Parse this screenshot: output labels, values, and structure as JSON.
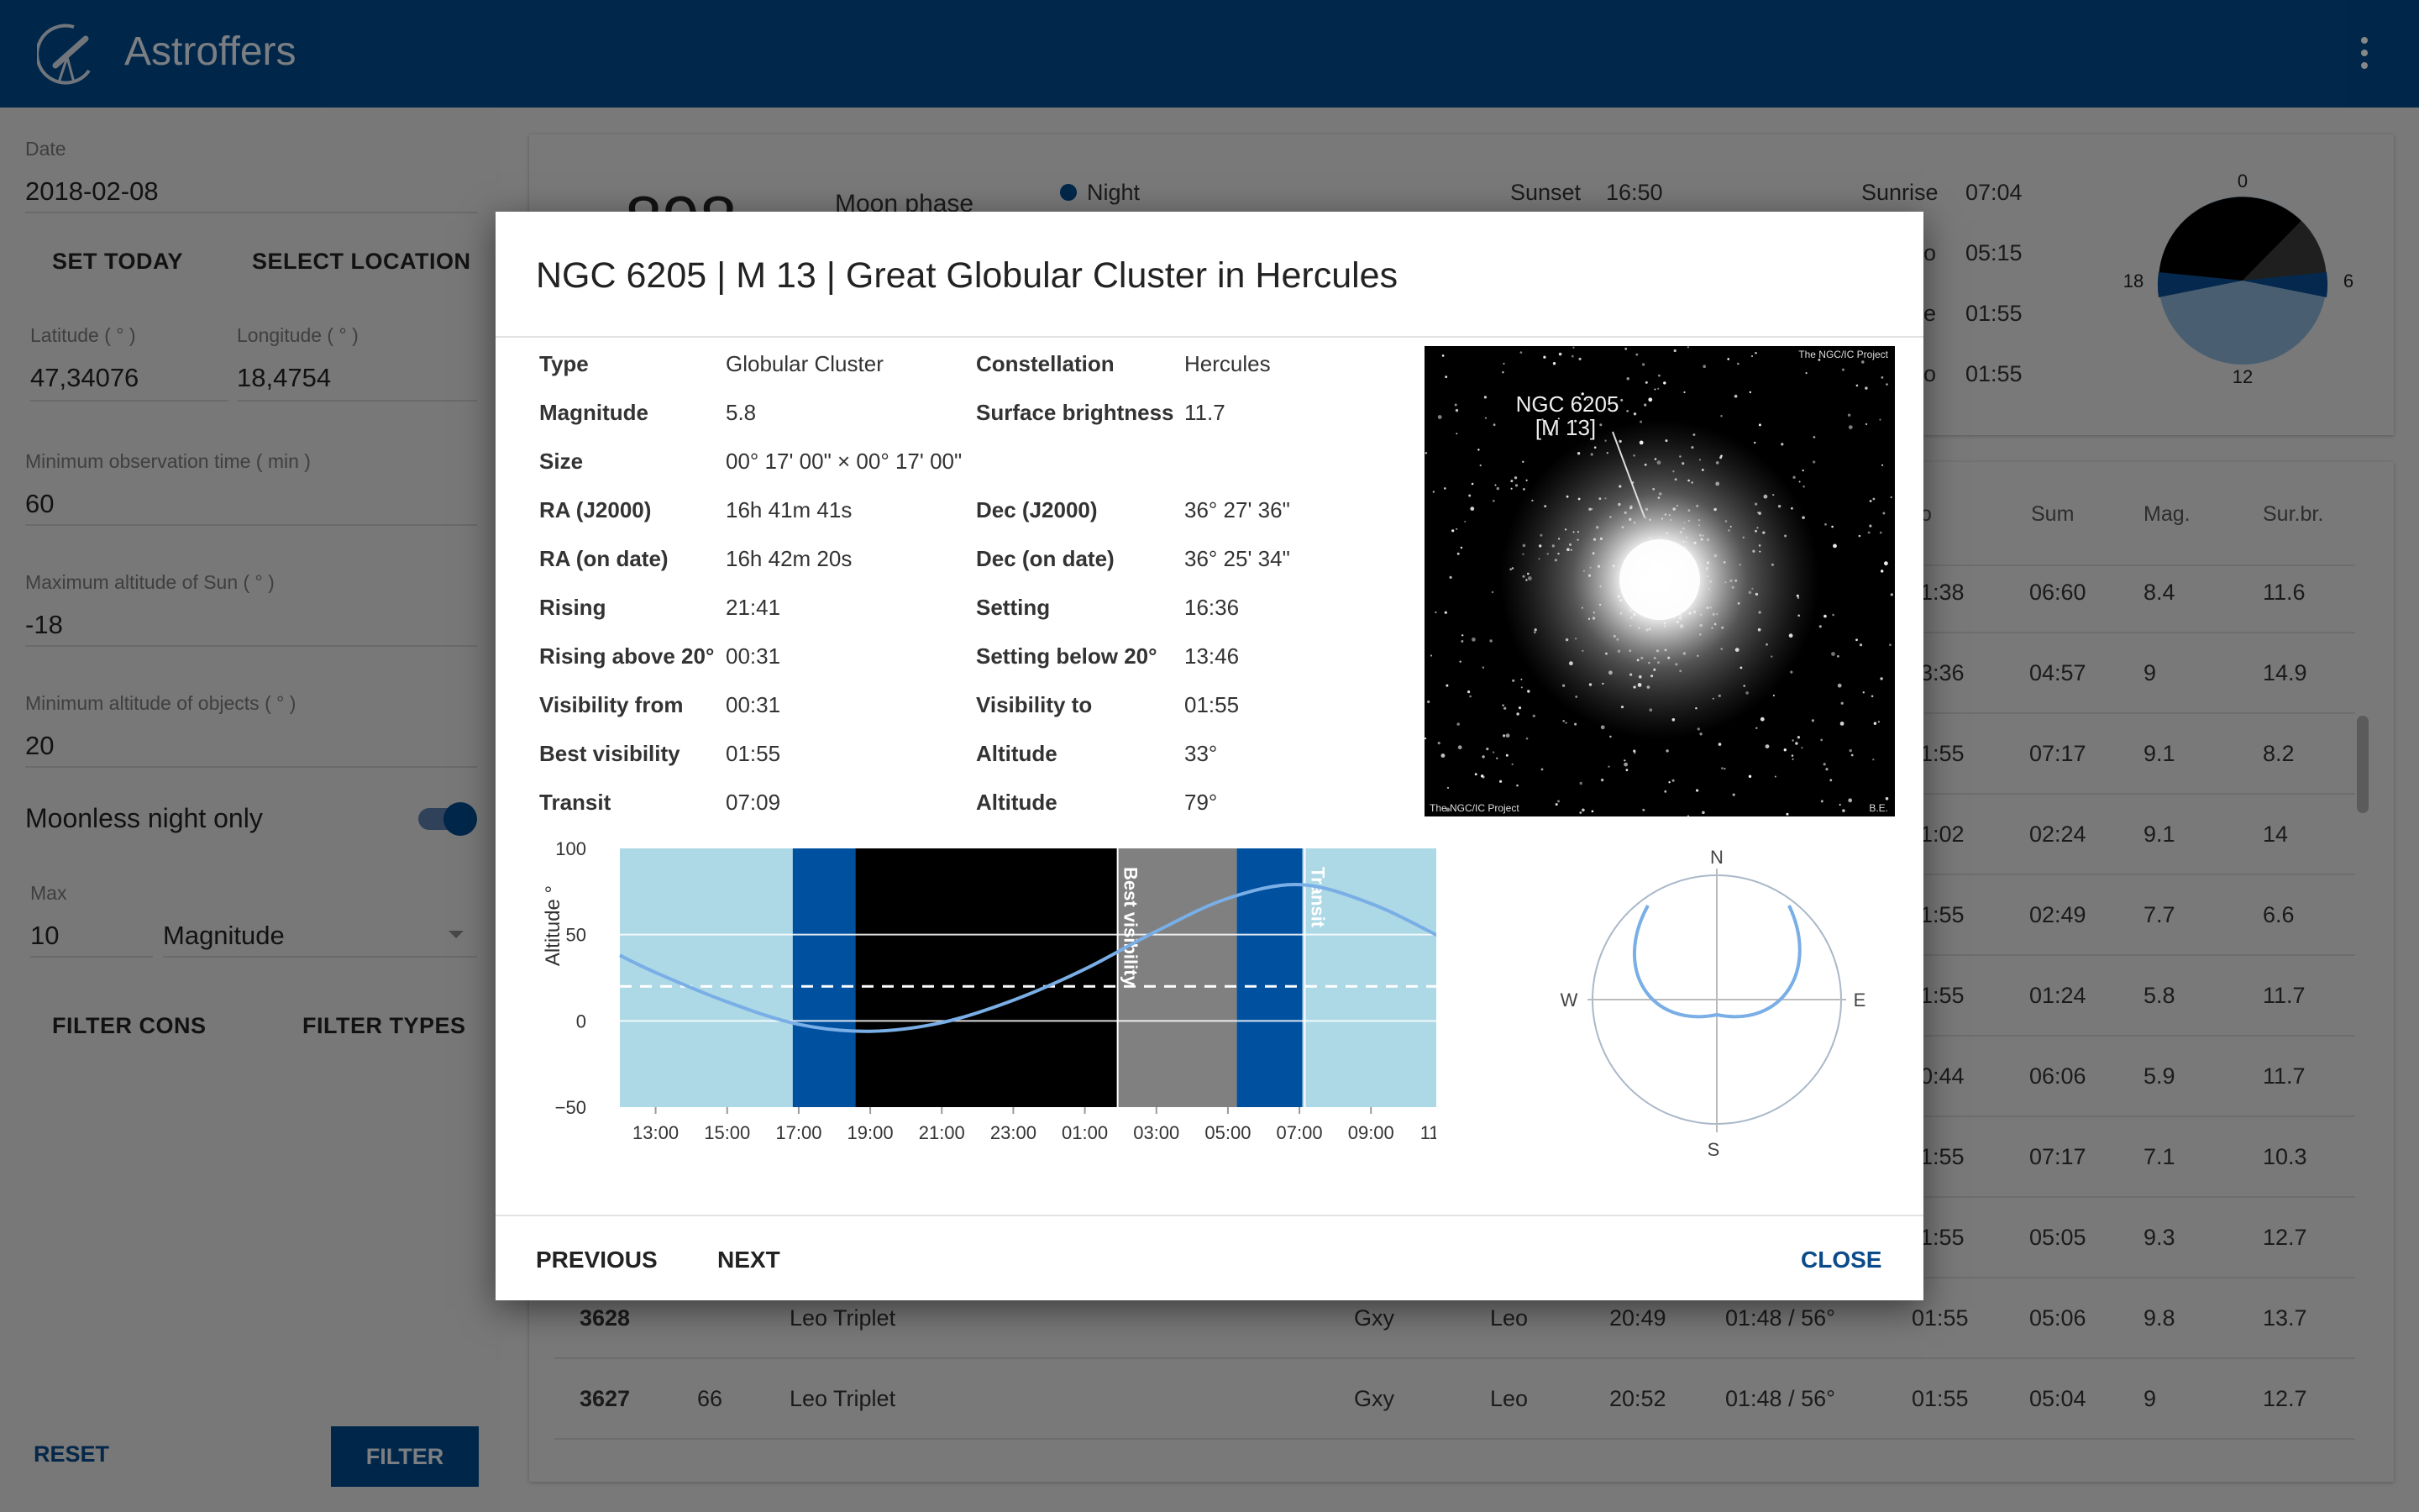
{
  "app": {
    "title": "Astroffers",
    "menu_icon": "more-vert-icon",
    "logo_icon": "telescope-icon"
  },
  "sidebar": {
    "date_label": "Date",
    "date_value": "2018-02-08",
    "set_today": "SET TODAY",
    "select_location": "SELECT LOCATION",
    "latitude_label": "Latitude ( ° )",
    "latitude_value": "47,34076",
    "longitude_label": "Longitude ( ° )",
    "longitude_value": "18,4754",
    "min_obs_label": "Minimum observation time ( min )",
    "min_obs_value": "60",
    "max_sun_label": "Maximum altitude of Sun ( ° )",
    "max_sun_value": "-18",
    "min_alt_label": "Minimum altitude of objects ( ° )",
    "min_alt_value": "20",
    "moonless_label": "Moonless night only",
    "moonless_on": true,
    "max_label": "Max",
    "max_value": "10",
    "max_type": "Magnitude",
    "filter_cons": "FILTER CONS",
    "filter_types": "FILTER TYPES",
    "reset": "RESET",
    "filter": "FILTER"
  },
  "summary": {
    "count_partial": "898",
    "moon_phase": "Moon phase",
    "legend_night": "Night",
    "sunset_label": "Sunset",
    "sunset_value": "16:50",
    "sunrise_label": "Sunrise",
    "sunrise_value": "07:04",
    "right_rows": [
      {
        "label_partial": "o",
        "value": "05:15"
      },
      {
        "label_partial": "e",
        "value": "01:55"
      },
      {
        "label_partial": "o",
        "value": "01:55"
      }
    ],
    "clock_labels": {
      "top": "0",
      "right": "6",
      "bottom": "12",
      "left": "18"
    }
  },
  "table": {
    "headers": {
      "partial": "o",
      "sum": "Sum",
      "mag": "Mag.",
      "surbr": "Sur.br."
    },
    "partial_rows": [
      {
        "c1": "1:38",
        "sum": "06:60",
        "mag": "8.4",
        "surbr": "11.6"
      },
      {
        "c1": "3:36",
        "sum": "04:57",
        "mag": "9",
        "surbr": "14.9"
      },
      {
        "c1": "1:55",
        "sum": "07:17",
        "mag": "9.1",
        "surbr": "8.2"
      },
      {
        "c1": "1:02",
        "sum": "02:24",
        "mag": "9.1",
        "surbr": "14"
      },
      {
        "c1": "1:55",
        "sum": "02:49",
        "mag": "7.7",
        "surbr": "6.6"
      },
      {
        "c1": "1:55",
        "sum": "01:24",
        "mag": "5.8",
        "surbr": "11.7"
      },
      {
        "c1": "0:44",
        "sum": "06:06",
        "mag": "5.9",
        "surbr": "11.7"
      },
      {
        "c1": "1:55",
        "sum": "07:17",
        "mag": "7.1",
        "surbr": "10.3"
      },
      {
        "c1": "1:55",
        "sum": "05:05",
        "mag": "9.3",
        "surbr": "12.7"
      }
    ],
    "full_rows": [
      {
        "ngc": "3628",
        "messier": "",
        "name": "Leo Triplet",
        "type": "Gxy",
        "cons": "Leo",
        "rise": "20:49",
        "best": "01:48 / 56°",
        "to": "01:55",
        "sum": "05:06",
        "mag": "9.8",
        "surbr": "13.7"
      },
      {
        "ngc": "3627",
        "messier": "66",
        "name": "Leo Triplet",
        "type": "Gxy",
        "cons": "Leo",
        "rise": "20:52",
        "best": "01:48 / 56°",
        "to": "01:55",
        "sum": "05:04",
        "mag": "9",
        "surbr": "12.7"
      }
    ]
  },
  "dialog": {
    "title": "NGC 6205 | M 13 | Great Globular Cluster in Hercules",
    "left": [
      {
        "k": "Type",
        "v": "Globular Cluster"
      },
      {
        "k": "Magnitude",
        "v": "5.8"
      },
      {
        "k": "Size",
        "v": "00° 17' 00\" × 00° 17' 00\""
      },
      {
        "k": "RA (J2000)",
        "v": "16h 41m 41s"
      },
      {
        "k": "RA (on date)",
        "v": "16h 42m 20s"
      },
      {
        "k": "Rising",
        "v": "21:41"
      },
      {
        "k": "Rising above 20°",
        "v": "00:31"
      },
      {
        "k": "Visibility from",
        "v": "00:31"
      },
      {
        "k": "Best visibility",
        "v": "01:55"
      },
      {
        "k": "Transit",
        "v": "07:09"
      }
    ],
    "right": [
      {
        "k": "Constellation",
        "v": "Hercules"
      },
      {
        "k": "Surface brightness",
        "v": "11.7"
      },
      {
        "k": "",
        "v": ""
      },
      {
        "k": "Dec (J2000)",
        "v": "36° 27' 36\""
      },
      {
        "k": "Dec (on date)",
        "v": "36° 25' 34\""
      },
      {
        "k": "Setting",
        "v": "16:36"
      },
      {
        "k": "Setting below 20°",
        "v": "13:46"
      },
      {
        "k": "Visibility to",
        "v": "01:55"
      },
      {
        "k": "Altitude",
        "v": "33°"
      },
      {
        "k": "Altitude",
        "v": "79°"
      }
    ],
    "image": {
      "label_line1": "NGC 6205",
      "label_line2": "[M 13]",
      "credit_top": "The NGC/IC Project",
      "credit_bottom": "The NGC/IC Project",
      "credit_initials": "B.E."
    },
    "previous": "PREVIOUS",
    "next": "NEXT",
    "close": "CLOSE"
  },
  "chart_data": [
    {
      "type": "line",
      "ylabel": "Altitude °",
      "ylim": [
        -50,
        100
      ],
      "yticks": [
        100,
        50,
        0,
        -50
      ],
      "ytick_labels": [
        "100",
        "50",
        "0",
        "−50"
      ],
      "x_start": "12:00",
      "x_end": "12:00 (next day)",
      "xticks": [
        "13:00",
        "15:00",
        "17:00",
        "19:00",
        "21:00",
        "23:00",
        "01:00",
        "03:00",
        "05:00",
        "07:00",
        "09:00",
        "11:00"
      ],
      "min_altitude_line": 20,
      "bands": [
        {
          "from": "12:00",
          "to": "16:50",
          "color": "#add8e6"
        },
        {
          "from": "16:50",
          "to": "18:35",
          "color": "#0050a0"
        },
        {
          "from": "18:35",
          "to": "01:55",
          "color": "#000000"
        },
        {
          "from": "01:55",
          "to": "05:15",
          "color": "#808080"
        },
        {
          "from": "05:15",
          "to": "07:05",
          "color": "#0050a0"
        },
        {
          "from": "07:05",
          "to": "12:00",
          "color": "#add8e6"
        }
      ],
      "markers": [
        {
          "at": "01:55",
          "label": "Best visibility"
        },
        {
          "at": "07:09",
          "label": "Transit"
        }
      ],
      "series": [
        {
          "values": [
            {
              "x": "12:00",
              "y": 38
            },
            {
              "x": "13:00",
              "y": 28
            },
            {
              "x": "15:00",
              "y": 11
            },
            {
              "x": "17:00",
              "y": -2
            },
            {
              "x": "19:00",
              "y": -6
            },
            {
              "x": "21:00",
              "y": -1
            },
            {
              "x": "23:00",
              "y": 12
            },
            {
              "x": "01:00",
              "y": 30
            },
            {
              "x": "03:00",
              "y": 52
            },
            {
              "x": "05:00",
              "y": 71
            },
            {
              "x": "07:00",
              "y": 79
            },
            {
              "x": "09:00",
              "y": 68
            },
            {
              "x": "11:00",
              "y": 48
            },
            {
              "x": "12:00",
              "y": 37
            }
          ]
        }
      ]
    },
    {
      "type": "polar",
      "labels": {
        "n": "N",
        "e": "E",
        "s": "S",
        "w": "W"
      }
    }
  ]
}
